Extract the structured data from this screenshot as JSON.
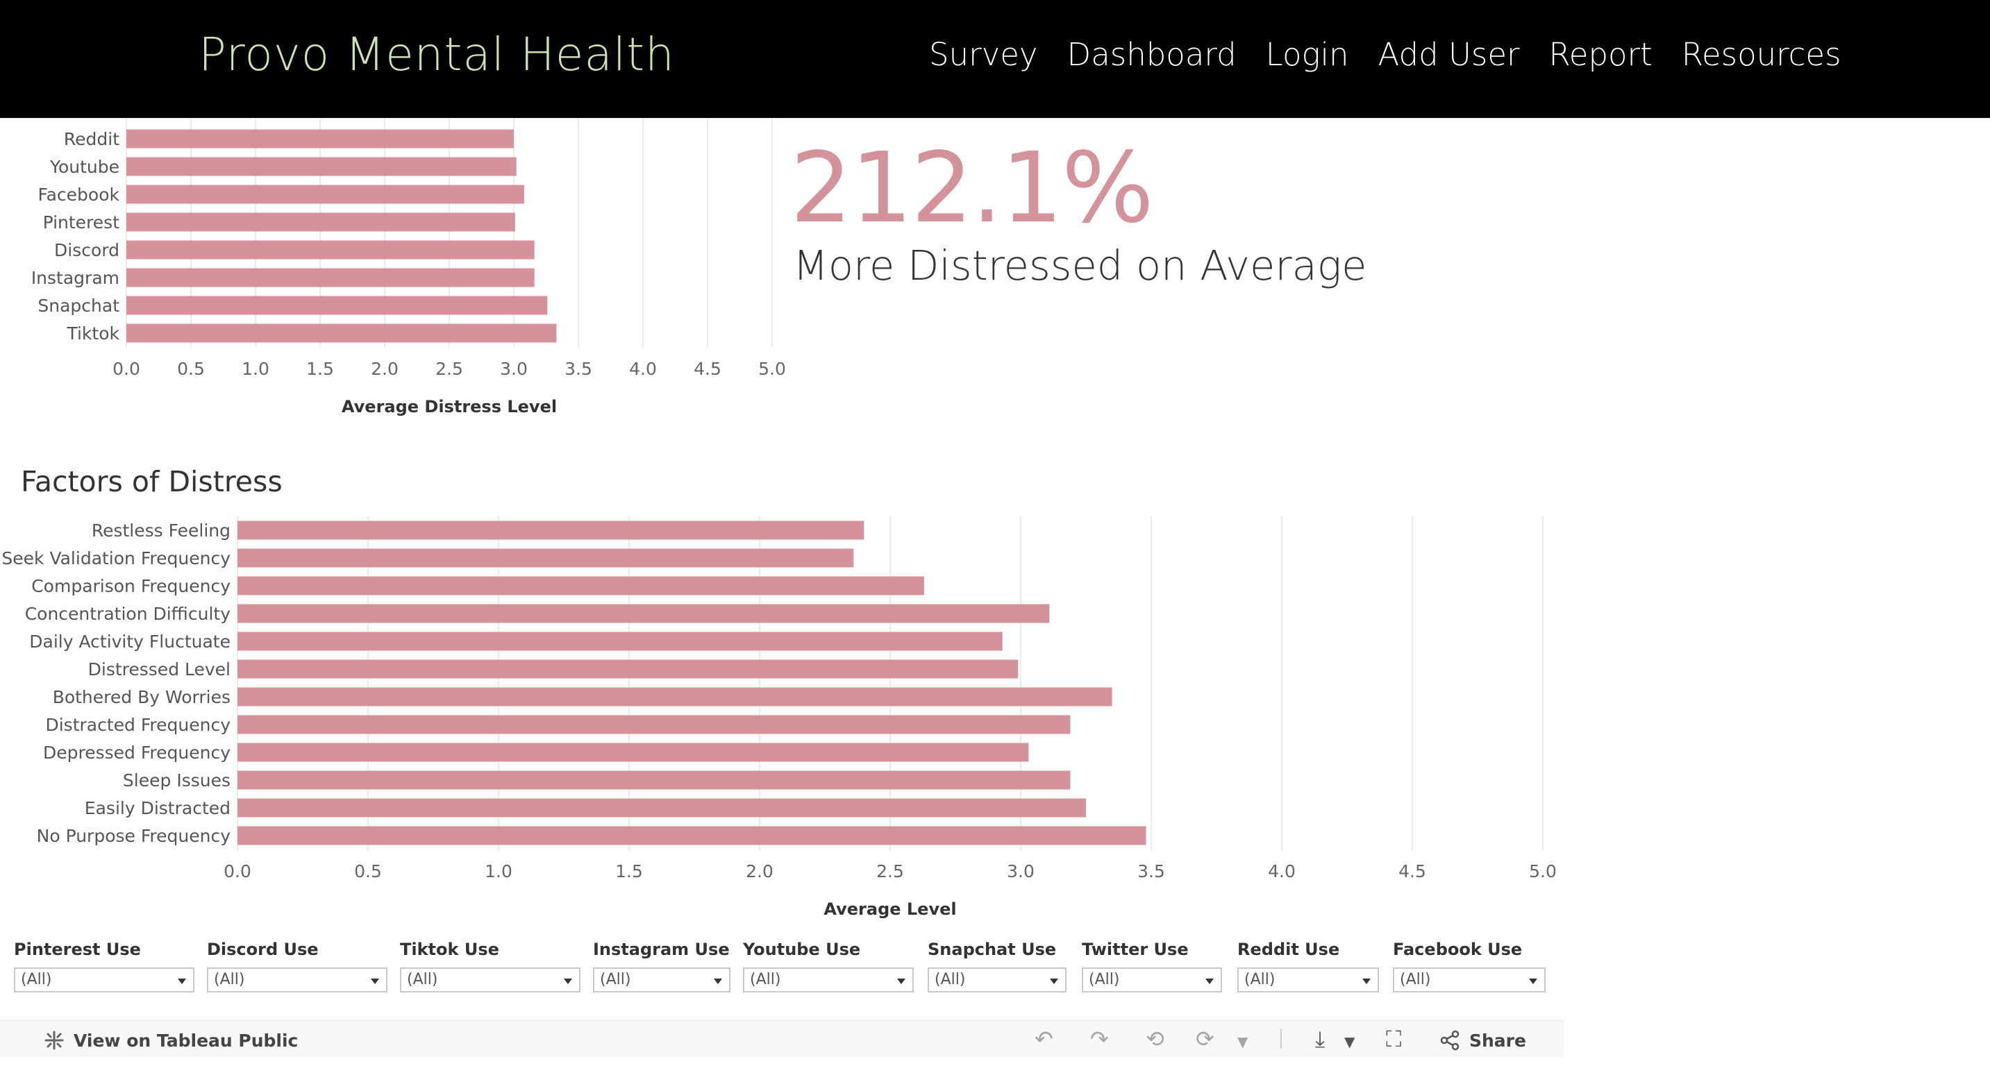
{
  "nav": {
    "brand": "Provo Mental Health",
    "links": [
      "Survey",
      "Dashboard",
      "Login",
      "Add User",
      "Report",
      "Resources"
    ]
  },
  "kpi": {
    "value": "212.1%",
    "caption": "More Distressed on Average"
  },
  "factors_title": "Factors of Distress",
  "chart_data": [
    {
      "type": "bar",
      "orientation": "horizontal",
      "title": "",
      "xlabel": "Average Distress Level",
      "ylabel": "",
      "xlim": [
        0,
        5
      ],
      "ticks": [
        "0.0",
        "0.5",
        "1.0",
        "1.5",
        "2.0",
        "2.5",
        "3.0",
        "3.5",
        "4.0",
        "4.5",
        "5.0"
      ],
      "categories": [
        "Reddit",
        "Youtube",
        "Facebook",
        "Pinterest",
        "Discord",
        "Instagram",
        "Snapchat",
        "Tiktok"
      ],
      "values": [
        3.0,
        3.02,
        3.08,
        3.01,
        3.16,
        3.16,
        3.26,
        3.33
      ]
    },
    {
      "type": "bar",
      "orientation": "horizontal",
      "title": "Factors of Distress",
      "xlabel": "Average Level",
      "ylabel": "",
      "xlim": [
        0,
        5
      ],
      "ticks": [
        "0.0",
        "0.5",
        "1.0",
        "1.5",
        "2.0",
        "2.5",
        "3.0",
        "3.5",
        "4.0",
        "4.5",
        "5.0"
      ],
      "categories": [
        "Restless Feeling",
        "Seek Validation Frequency",
        "Comparison Frequency",
        "Concentration Difficulty",
        "Daily Activity Fluctuate",
        "Distressed Level",
        "Bothered By Worries",
        "Distracted Frequency",
        "Depressed Frequency",
        "Sleep Issues",
        "Easily Distracted",
        "No Purpose Frequency"
      ],
      "values": [
        2.4,
        2.36,
        2.63,
        3.11,
        2.93,
        2.99,
        3.35,
        3.19,
        3.03,
        3.19,
        3.25,
        3.48
      ]
    }
  ],
  "filters": [
    {
      "label": "Pinterest Use",
      "value": "(All)"
    },
    {
      "label": "Discord Use",
      "value": "(All)"
    },
    {
      "label": "Tiktok Use",
      "value": "(All)"
    },
    {
      "label": "Instagram Use",
      "value": "(All)"
    },
    {
      "label": "Youtube Use",
      "value": "(All)"
    },
    {
      "label": "Snapchat Use",
      "value": "(All)"
    },
    {
      "label": "Twitter Use",
      "value": "(All)"
    },
    {
      "label": "Reddit Use",
      "value": "(All)"
    },
    {
      "label": "Facebook Use",
      "value": "(All)"
    }
  ],
  "toolbar": {
    "view_label": "View on Tableau Public",
    "share_label": "Share"
  },
  "colors": {
    "bar": "#d4929a",
    "brand": "#cde3b0",
    "nav_bg": "#000000"
  }
}
